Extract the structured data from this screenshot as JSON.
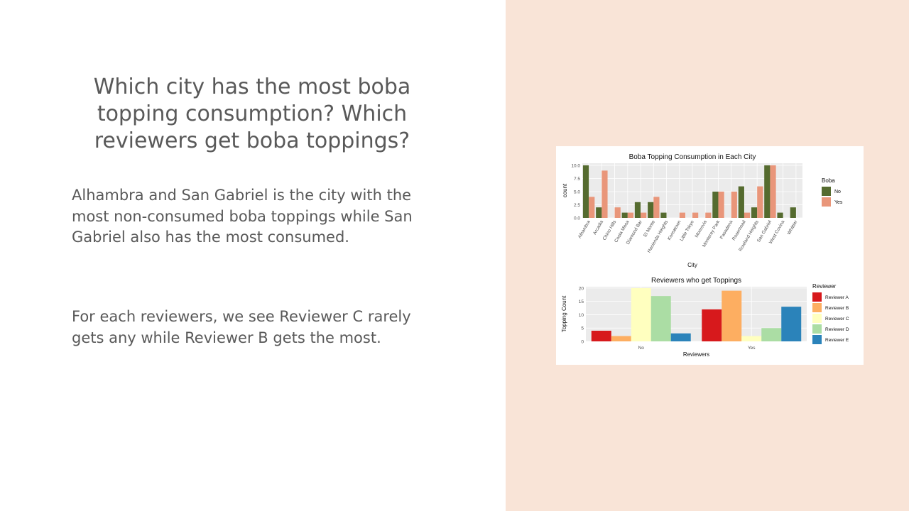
{
  "slide": {
    "title": "Which city has the most boba topping consumption? Which reviewers get boba toppings?",
    "paragraph1": "Alhambra and San Gabriel is the city with the most non-consumed boba toppings while San Gabriel also has the most consumed.",
    "paragraph2": "For each reviewers, we see Reviewer C rarely gets any while Reviewer B gets the most.",
    "colors": {
      "left_bg": "#ffffff",
      "right_bg": "#f9e4d7",
      "text": "#595959"
    }
  },
  "chart_data": [
    {
      "type": "bar",
      "title": "Boba Topping Consumption in Each City",
      "xlabel": "City",
      "ylabel": "count",
      "categories": [
        "Alhambra",
        "Arcadia",
        "Chino Hills",
        "Costa Mesa",
        "Diamond Bar",
        "El Monte",
        "Hacienda Heights",
        "Koreatown",
        "Little Tokyo",
        "Monrovia",
        "Monterey Park",
        "Pasadena",
        "Rosemead",
        "Rowland Heights",
        "San Gabriel",
        "West Covina",
        "Whittier"
      ],
      "yticks": [
        "0.0",
        "2.5",
        "5.0",
        "7.5",
        "10.0"
      ],
      "ylim": [
        0,
        10.4
      ],
      "legend_title": "Boba",
      "legend_position": "right",
      "grid": true,
      "series": [
        {
          "name": "No",
          "color": "#556b2f",
          "values": [
            10,
            2,
            0,
            1,
            3,
            3,
            1,
            0,
            0,
            0,
            5,
            0,
            6,
            2,
            10,
            1,
            2
          ]
        },
        {
          "name": "Yes",
          "color": "#e9967a",
          "values": [
            4,
            9,
            2,
            1,
            1,
            4,
            0,
            1,
            1,
            1,
            5,
            5,
            1,
            6,
            10,
            0,
            0
          ]
        }
      ]
    },
    {
      "type": "bar",
      "title": "Reviewers who get Toppings",
      "xlabel": "Reviewers",
      "ylabel": "Topping Count",
      "categories": [
        "No",
        "Yes"
      ],
      "yticks": [
        "0",
        "5",
        "10",
        "15",
        "20"
      ],
      "ylim": [
        0,
        20.5
      ],
      "legend_title": "Reviewer",
      "legend_position": "right",
      "grid": true,
      "series": [
        {
          "name": "Reviewer A",
          "color": "#d7191c",
          "values": [
            4,
            12
          ]
        },
        {
          "name": "Reviewer B",
          "color": "#fdae61",
          "values": [
            2,
            19
          ]
        },
        {
          "name": "Reviewer C",
          "color": "#ffffbf",
          "values": [
            20,
            2
          ]
        },
        {
          "name": "Reviewer D",
          "color": "#abdda4",
          "values": [
            17,
            5
          ]
        },
        {
          "name": "Reviewer E",
          "color": "#2b83ba",
          "values": [
            3,
            13
          ]
        }
      ]
    }
  ]
}
